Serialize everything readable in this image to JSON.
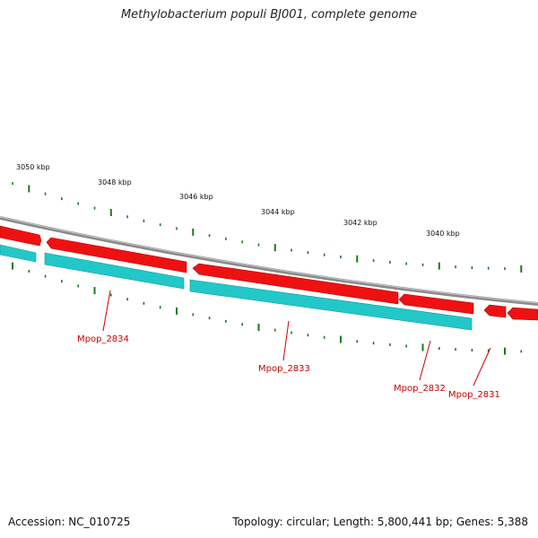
{
  "header": {
    "title": "Methylobacterium populi BJ001, complete genome"
  },
  "footer": {
    "accession": "Accession: NC_010725",
    "summary": "Topology: circular; Length: 5,800,441 bp; Genes: 5,388"
  },
  "ruler": {
    "labels": [
      "3050 kbp",
      "3048 kbp",
      "3046 kbp",
      "3044 kbp",
      "3042 kbp",
      "3040 kbp"
    ]
  },
  "genes": {
    "labels": [
      "Mpop_2834",
      "Mpop_2833",
      "Mpop_2832",
      "Mpop_2831"
    ]
  },
  "colors": {
    "backbone": "#8a8a8a",
    "gene_red": "#ee1111",
    "gene_cyan": "#22c8c8",
    "tick": "#1a7a1a",
    "label_red": "#cc0000"
  }
}
